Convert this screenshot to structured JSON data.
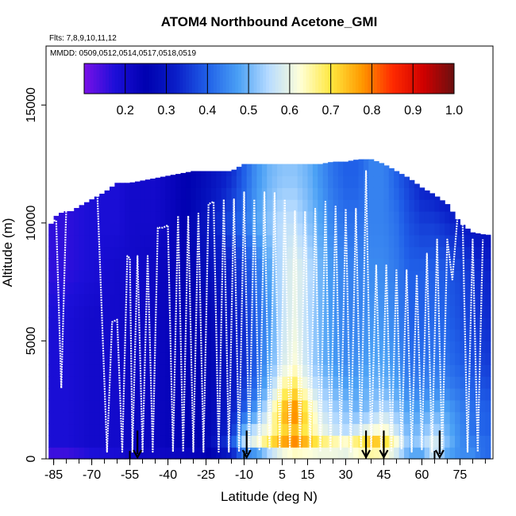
{
  "chart_data": {
    "type": "heatmap",
    "title": "ATOM4 Northbound Acetone_GMI",
    "flights_note": "Flts: 7,8,9,10,11,12",
    "dates_note": "MMDD: 0509,0512,0514,0517,0518,0519",
    "xlabel": "Latitude (deg N)",
    "ylabel": "Altitude (m)",
    "xlim": [
      -88,
      88
    ],
    "ylim": [
      0,
      17500
    ],
    "x_ticks": [
      -85,
      -70,
      -55,
      -40,
      -25,
      -10,
      5,
      15,
      30,
      45,
      60,
      75
    ],
    "x_tick_labels": [
      "-85",
      "-70",
      "-55",
      "-40",
      "-25",
      "-10",
      "5",
      "15",
      "30",
      "45",
      "60",
      "75"
    ],
    "y_ticks": [
      0,
      5000,
      10000,
      15000
    ],
    "y_tick_labels": [
      "0",
      "5000",
      "10000",
      "15000"
    ],
    "colorbar": {
      "min": 0.1,
      "max": 1.0,
      "ticks": [
        0.2,
        0.3,
        0.4,
        0.5,
        0.6,
        0.7,
        0.8,
        0.9,
        1.0
      ],
      "tick_labels": [
        "0.2",
        "0.3",
        "0.4",
        "0.5",
        "0.6",
        "0.7",
        "0.8",
        "0.9",
        "1.0"
      ],
      "colors": [
        "#7a10e8",
        "#1c0fd8",
        "#0000b0",
        "#0a1fc8",
        "#2060e8",
        "#4aa0f5",
        "#b8dcff",
        "#ffffd8",
        "#ffe840",
        "#ff9a00",
        "#ff2a00",
        "#d00000",
        "#6a1010"
      ]
    },
    "field": {
      "description": "model acetone curtain interpolated along flight track",
      "samples_lat": [
        -86,
        -80,
        -70,
        -60,
        -55,
        -45,
        -35,
        -25,
        -15,
        -10,
        -5,
        0,
        5,
        10,
        15,
        20,
        25,
        30,
        35,
        40,
        45,
        50,
        55,
        60,
        65,
        70,
        75,
        80,
        85
      ],
      "samples_alt": [
        0,
        500,
        1000,
        2000,
        3000,
        4000,
        6000,
        8000,
        10000,
        12000
      ],
      "values": [
        [
          0.12,
          0.12,
          0.15,
          0.17,
          0.2,
          0.2,
          0.2,
          0.22,
          0.24,
          0.3,
          0.32,
          0.35,
          0.4,
          0.42,
          0.45,
          0.48,
          0.5,
          0.5,
          0.5,
          0.48,
          0.5,
          0.5,
          0.45,
          0.42,
          0.55,
          0.45,
          0.45,
          0.45,
          0.4
        ],
        [
          0.18,
          0.18,
          0.2,
          0.2,
          0.22,
          0.22,
          0.24,
          0.26,
          0.4,
          0.58,
          0.62,
          0.75,
          0.82,
          0.85,
          0.8,
          0.74,
          0.72,
          0.7,
          0.76,
          0.82,
          0.78,
          0.66,
          0.52,
          0.55,
          0.62,
          0.52,
          0.45,
          0.45,
          0.42
        ],
        [
          0.18,
          0.18,
          0.2,
          0.2,
          0.22,
          0.22,
          0.24,
          0.26,
          0.34,
          0.52,
          0.6,
          0.64,
          0.7,
          0.72,
          0.68,
          0.62,
          0.58,
          0.56,
          0.6,
          0.64,
          0.66,
          0.58,
          0.5,
          0.52,
          0.56,
          0.5,
          0.45,
          0.42,
          0.4
        ],
        [
          0.18,
          0.18,
          0.2,
          0.2,
          0.22,
          0.22,
          0.24,
          0.26,
          0.32,
          0.4,
          0.48,
          0.6,
          0.75,
          0.8,
          0.7,
          0.58,
          0.54,
          0.52,
          0.5,
          0.52,
          0.56,
          0.52,
          0.48,
          0.48,
          0.5,
          0.48,
          0.44,
          0.42,
          0.4
        ],
        [
          0.18,
          0.18,
          0.2,
          0.2,
          0.22,
          0.22,
          0.24,
          0.26,
          0.3,
          0.36,
          0.42,
          0.52,
          0.66,
          0.7,
          0.6,
          0.54,
          0.5,
          0.48,
          0.48,
          0.5,
          0.5,
          0.48,
          0.44,
          0.44,
          0.45,
          0.44,
          0.42,
          0.4,
          0.38
        ],
        [
          0.18,
          0.18,
          0.2,
          0.2,
          0.22,
          0.22,
          0.24,
          0.26,
          0.3,
          0.34,
          0.4,
          0.48,
          0.58,
          0.62,
          0.56,
          0.5,
          0.47,
          0.45,
          0.46,
          0.48,
          0.48,
          0.46,
          0.42,
          0.42,
          0.43,
          0.42,
          0.4,
          0.38,
          0.36
        ],
        [
          0.18,
          0.18,
          0.2,
          0.2,
          0.22,
          0.22,
          0.24,
          0.26,
          0.3,
          0.34,
          0.4,
          0.46,
          0.56,
          0.6,
          0.55,
          0.5,
          0.46,
          0.44,
          0.44,
          0.46,
          0.46,
          0.44,
          0.4,
          0.4,
          0.41,
          0.4,
          0.38,
          0.36,
          0.34
        ],
        [
          0.16,
          0.16,
          0.18,
          0.2,
          0.2,
          0.22,
          0.24,
          0.28,
          0.32,
          0.36,
          0.42,
          0.48,
          0.56,
          0.6,
          0.56,
          0.5,
          0.46,
          0.44,
          0.44,
          0.45,
          0.45,
          0.43,
          0.4,
          0.4,
          0.4,
          0.39,
          0.37,
          0.35,
          0.33
        ],
        [
          0.16,
          0.16,
          0.18,
          0.18,
          0.2,
          0.2,
          0.24,
          0.3,
          0.38,
          0.42,
          0.48,
          0.52,
          0.56,
          0.56,
          0.52,
          0.48,
          0.44,
          0.42,
          0.42,
          0.44,
          0.44,
          0.42,
          0.38,
          0.36,
          0.36,
          0.34,
          0.32,
          0.3,
          0.28
        ],
        [
          0.16,
          0.16,
          0.18,
          0.18,
          0.2,
          0.2,
          0.24,
          0.28,
          0.34,
          0.4,
          0.46,
          0.5,
          0.52,
          0.52,
          0.5,
          0.46,
          0.42,
          0.4,
          0.4,
          0.44,
          0.44,
          0.4,
          0.36,
          0.32,
          0.3,
          0.28,
          0.26,
          0.24,
          0.22
        ]
      ]
    },
    "ceiling_profile": {
      "lat": [
        -87,
        -84,
        -81,
        -78,
        -75,
        -70,
        -65,
        -60,
        -55,
        -50,
        -45,
        -40,
        -35,
        -30,
        -25,
        -20,
        -15,
        -10,
        -5,
        0,
        5,
        10,
        15,
        20,
        25,
        30,
        35,
        40,
        45,
        50,
        55,
        60,
        65,
        70,
        75,
        80,
        85
      ],
      "alt": [
        9800,
        10300,
        10500,
        10500,
        10700,
        11000,
        11300,
        11700,
        11700,
        11800,
        11900,
        12000,
        12100,
        12200,
        12200,
        12200,
        12200,
        12500,
        12500,
        12500,
        12500,
        12500,
        12500,
        12500,
        12600,
        12600,
        12700,
        12700,
        12500,
        12200,
        11900,
        11500,
        11200,
        10800,
        10000,
        9600,
        9500
      ]
    },
    "flight_track": {
      "lat": [
        -86,
        -85,
        -84,
        -82,
        -80,
        -78,
        -76,
        -74,
        -72,
        -70,
        -68,
        -64,
        -62,
        -60,
        -58,
        -56,
        -55,
        -54,
        -52,
        -50,
        -48,
        -46,
        -44,
        -42,
        -40,
        -38,
        -36,
        -34,
        -32,
        -30,
        -28,
        -26,
        -24,
        -22,
        -20,
        -18,
        -16,
        -14,
        -12,
        -10,
        -8,
        -6,
        -4,
        -2,
        0,
        2,
        4,
        6,
        8,
        10,
        12,
        14,
        16,
        18,
        20,
        22,
        24,
        26,
        28,
        30,
        32,
        34,
        36,
        38,
        40,
        42,
        44,
        46,
        48,
        50,
        52,
        54,
        56,
        58,
        60,
        62,
        64,
        66,
        68,
        70,
        72,
        74,
        76,
        78,
        80,
        82,
        84
      ],
      "alt": [
        10100,
        10100,
        10100,
        3000,
        10800,
        11200,
        11300,
        11400,
        11600,
        11700,
        11800,
        300,
        5800,
        5900,
        300,
        8600,
        8500,
        300,
        8600,
        300,
        8600,
        300,
        9800,
        9800,
        9900,
        300,
        10300,
        300,
        10300,
        300,
        10400,
        300,
        10800,
        10900,
        300,
        11000,
        300,
        11000,
        300,
        11300,
        400,
        11000,
        400,
        11300,
        400,
        11300,
        500,
        11000,
        400,
        10500,
        400,
        10500,
        400,
        10600,
        300,
        10900,
        300,
        10700,
        400,
        10600,
        300,
        10600,
        500,
        12200,
        400,
        8200,
        300,
        8200,
        300,
        8000,
        400,
        8000,
        300,
        7800,
        400,
        8700,
        300,
        9300,
        300,
        9300,
        7600,
        10200,
        10300,
        300,
        9300,
        300,
        9300
      ]
    },
    "arrows_lat": [
      -52,
      -9,
      38,
      45,
      67
    ],
    "arrow_tick_lat": [
      -55,
      -10,
      38,
      45,
      65
    ]
  }
}
